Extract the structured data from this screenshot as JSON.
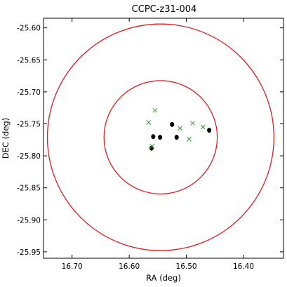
{
  "chart_data": {
    "type": "scatter",
    "title": "CCPC-z31-004",
    "xlabel": "RA (deg)",
    "ylabel": "DEC (deg)",
    "xlim": [
      16.75,
      16.33
    ],
    "ylim": [
      -25.96,
      -25.585
    ],
    "x_inverted": true,
    "grid": false,
    "x_ticks": [
      16.7,
      16.6,
      16.5,
      16.4
    ],
    "x_tick_labels": [
      "16.70",
      "16.60",
      "16.50",
      "16.40"
    ],
    "y_ticks": [
      -25.6,
      -25.65,
      -25.7,
      -25.75,
      -25.8,
      -25.85,
      -25.9,
      -25.95
    ],
    "y_tick_labels": [
      "-25.60",
      "-25.65",
      "-25.70",
      "-25.75",
      "-25.80",
      "-25.85",
      "-25.90",
      "-25.95"
    ],
    "circles": [
      {
        "center_ra": 16.545,
        "center_dec": -25.771,
        "radius_dec": 0.177,
        "color": "#e31a1c"
      },
      {
        "center_ra": 16.545,
        "center_dec": -25.771,
        "radius_dec": 0.0885,
        "color": "#e31a1c"
      }
    ],
    "series": [
      {
        "marker": "dot",
        "color": "#000000",
        "points": [
          {
            "x": 16.558,
            "y": -25.77
          },
          {
            "x": 16.546,
            "y": -25.771
          },
          {
            "x": 16.561,
            "y": -25.788
          },
          {
            "x": 16.525,
            "y": -25.751
          },
          {
            "x": 16.517,
            "y": -25.771
          },
          {
            "x": 16.46,
            "y": -25.76
          }
        ]
      },
      {
        "marker": "x",
        "color": "#2e9b2e",
        "points": [
          {
            "x": 16.555,
            "y": -25.729
          },
          {
            "x": 16.566,
            "y": -25.748
          },
          {
            "x": 16.511,
            "y": -25.757
          },
          {
            "x": 16.489,
            "y": -25.749
          },
          {
            "x": 16.495,
            "y": -25.774
          },
          {
            "x": 16.471,
            "y": -25.755
          },
          {
            "x": 16.56,
            "y": -25.785
          }
        ]
      }
    ]
  }
}
